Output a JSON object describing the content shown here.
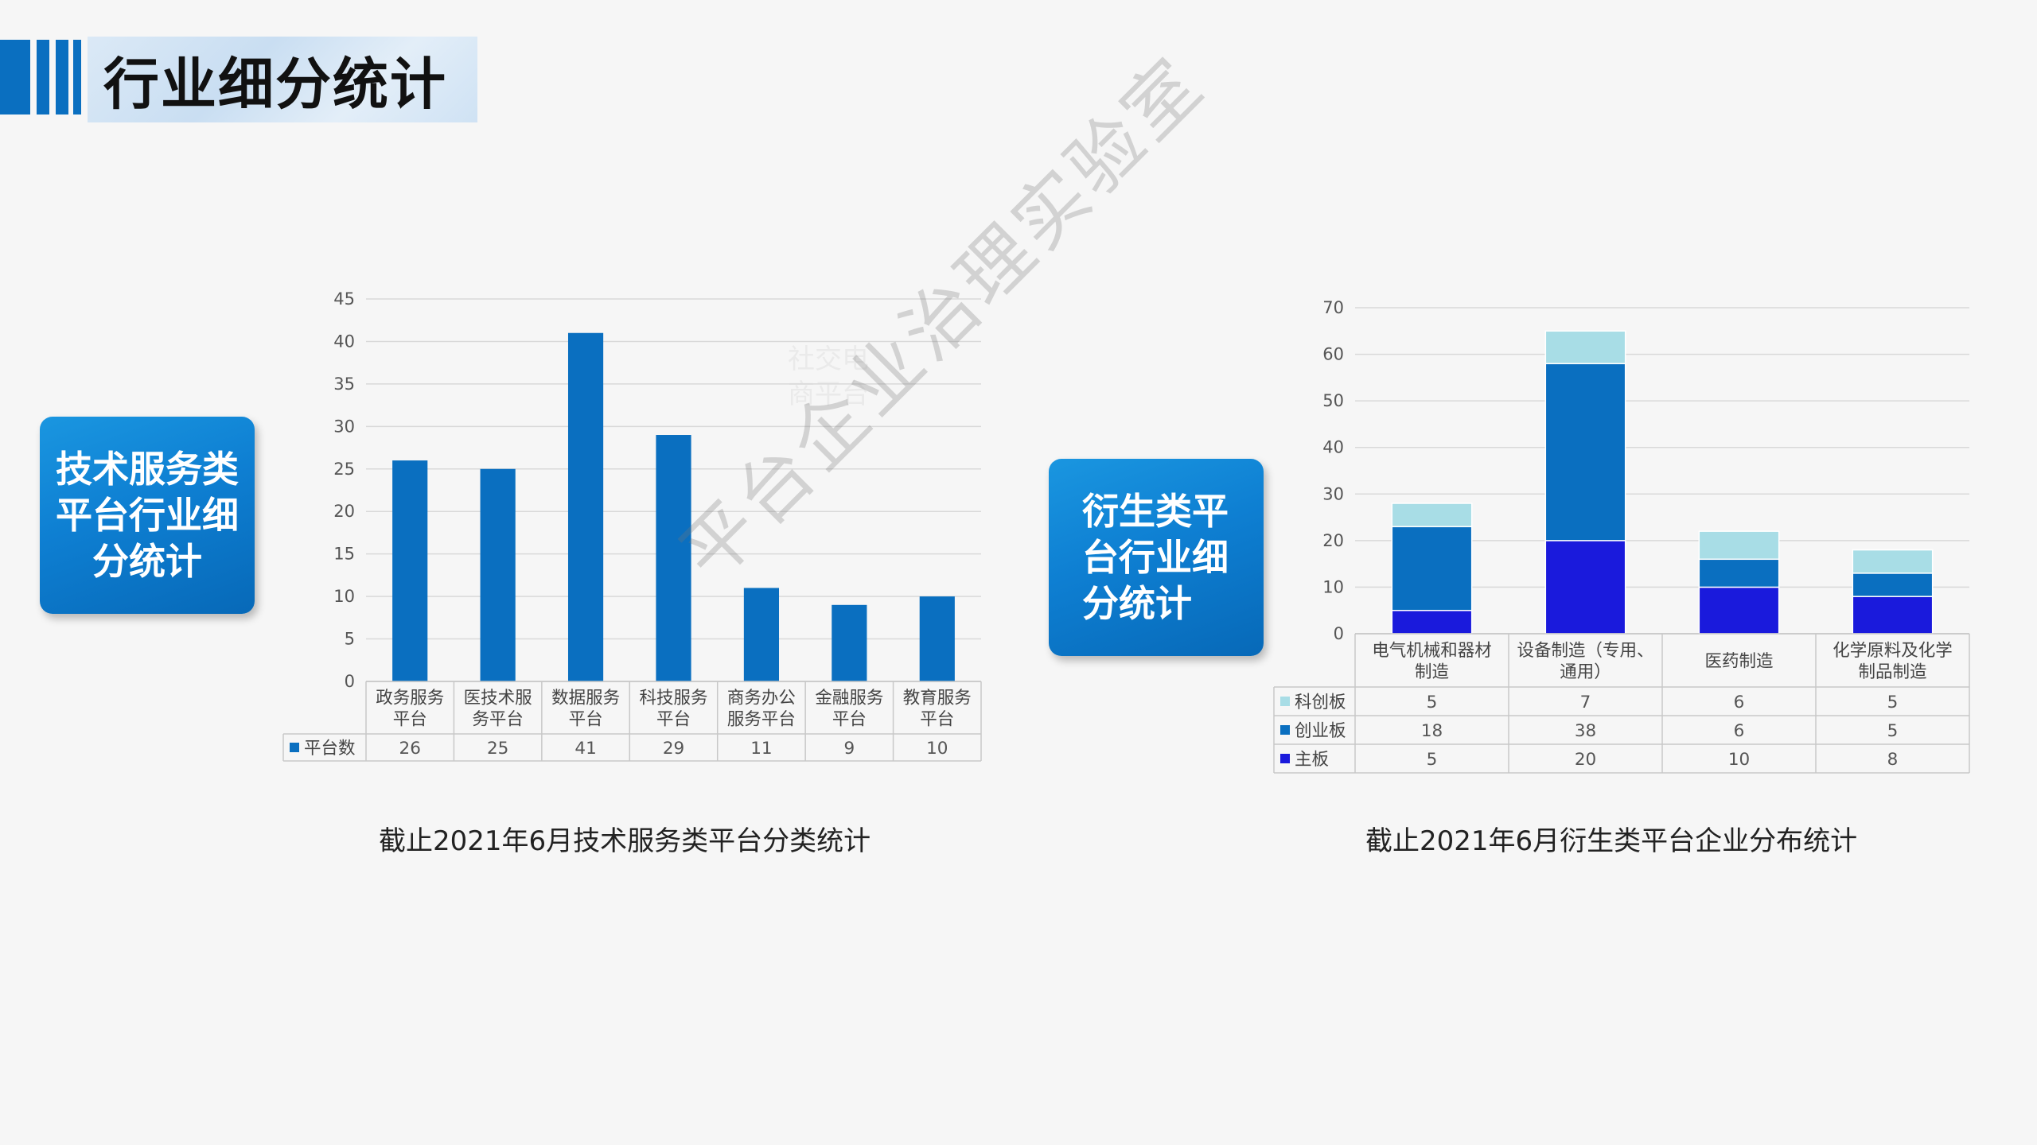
{
  "title": "行业细分统计",
  "callout_left": "技术服务类\n平台行业细\n分统计",
  "callout_right": "衍生类平\n台行业细\n分统计",
  "watermark": "平台企业治理实验室",
  "faint_watermark": "社交电\n商平台",
  "captions": {
    "left": "截止2021年6月技术服务类平台分类统计",
    "right": "截止2021年6月衍生类平台企业分布统计"
  },
  "colors": {
    "bar": "#0a6fc0",
    "kechuang": "#a8dde6",
    "chuangye": "#0a6fc0",
    "zhuban": "#1a1adc"
  },
  "chart_data": [
    {
      "type": "bar",
      "categories": [
        [
          "政务服务",
          "平台"
        ],
        [
          "医技术服",
          "务平台"
        ],
        [
          "数据服务",
          "平台"
        ],
        [
          "科技服务",
          "平台"
        ],
        [
          "商务办公",
          "服务平台"
        ],
        [
          "金融服务",
          "平台"
        ],
        [
          "教育服务",
          "平台"
        ]
      ],
      "series": [
        {
          "name": "平台数",
          "values": [
            26,
            25,
            41,
            29,
            11,
            9,
            10
          ]
        }
      ],
      "ylim": [
        0,
        45
      ],
      "yticks": [
        0,
        5,
        10,
        15,
        20,
        25,
        30,
        35,
        40,
        45
      ],
      "grid": true,
      "legend": "data-table"
    },
    {
      "type": "bar",
      "stacked": true,
      "categories": [
        [
          "电气机械和器材",
          "制造"
        ],
        [
          "设备制造（专用、",
          "通用）"
        ],
        [
          "医药制造"
        ],
        [
          "化学原料及化学",
          "制品制造"
        ]
      ],
      "series": [
        {
          "name": "科创板",
          "values": [
            5,
            7,
            6,
            5
          ]
        },
        {
          "name": "创业板",
          "values": [
            18,
            38,
            6,
            5
          ]
        },
        {
          "name": "主板",
          "values": [
            5,
            20,
            10,
            8
          ]
        }
      ],
      "ylim": [
        0,
        70
      ],
      "yticks": [
        0,
        10,
        20,
        30,
        40,
        50,
        60,
        70
      ],
      "grid": true,
      "legend": "data-table"
    }
  ]
}
